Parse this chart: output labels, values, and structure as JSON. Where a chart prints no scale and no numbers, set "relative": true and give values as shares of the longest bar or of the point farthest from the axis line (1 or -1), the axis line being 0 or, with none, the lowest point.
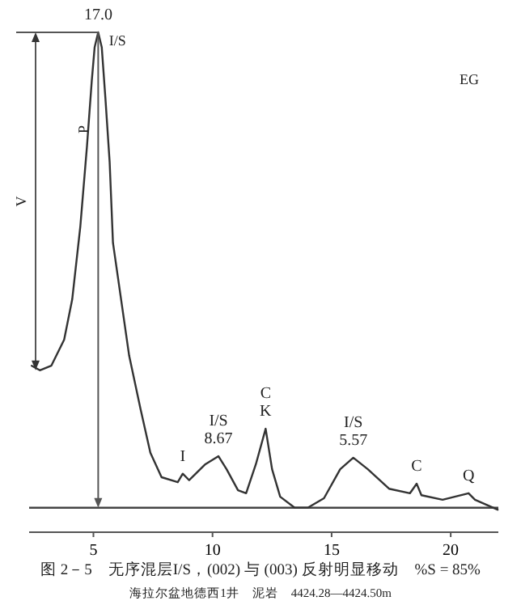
{
  "chart_data": {
    "type": "line",
    "relative": true,
    "title": "图 2－5　无序混层I/S，(002) 与 (003) 反射明显移动　%S = 85%",
    "subtitle": "海拉尔盆地德西1井　泥岩　4424.28—4424.50m",
    "x": [
      2.41,
      2.75,
      3.23,
      3.77,
      4.11,
      4.45,
      4.73,
      4.93,
      5.05,
      5.2,
      5.35,
      5.5,
      5.68,
      5.82,
      6.5,
      6.98,
      7.39,
      7.86,
      8.54,
      8.75,
      9.02,
      9.7,
      10.25,
      10.59,
      11.07,
      11.41,
      11.82,
      12.23,
      12.5,
      12.84,
      13.45,
      14.0,
      14.68,
      15.36,
      15.91,
      16.52,
      17.41,
      18.29,
      18.57,
      18.77,
      19.66,
      20.75,
      21.02,
      21.97
    ],
    "series": [
      {
        "color": "#333333",
        "values": [
          0.333,
          0.324,
          0.333,
          0.385,
          0.466,
          0.612,
          0.773,
          0.903,
          0.97,
          1.0,
          0.97,
          0.87,
          0.741,
          0.579,
          0.353,
          0.246,
          0.159,
          0.11,
          0.1,
          0.117,
          0.104,
          0.136,
          0.152,
          0.126,
          0.084,
          0.078,
          0.136,
          0.207,
          0.126,
          0.071,
          0.049,
          0.049,
          0.068,
          0.126,
          0.149,
          0.126,
          0.087,
          0.078,
          0.097,
          0.074,
          0.065,
          0.078,
          0.065,
          0.045
        ]
      }
    ],
    "xlim": [
      2.3,
      22
    ],
    "xticks": [
      5,
      10,
      15,
      20
    ],
    "grid": false,
    "marker": "none",
    "line_style": "solid",
    "ref_lines": [
      {
        "axis": "y",
        "value": 0.049,
        "color": "#444444"
      },
      {
        "axis": "x",
        "value": 5.2,
        "label": "P",
        "color": "#555555"
      }
    ],
    "annotations": [
      {
        "text": "17.0",
        "x": 5.2,
        "y": 1.0
      },
      {
        "text": "I",
        "x": 8.75,
        "y": 0.117
      },
      {
        "text": "I/S\n8.67",
        "x": 10.25,
        "y": 0.152
      },
      {
        "text": "C\nK",
        "x": 12.23,
        "y": 0.207
      },
      {
        "text": "I/S\n5.57",
        "x": 15.91,
        "y": 0.149
      },
      {
        "text": "C",
        "x": 18.57,
        "y": 0.097
      },
      {
        "text": "Q",
        "x": 20.75,
        "y": 0.078
      },
      "V",
      "I/S",
      "EG"
    ]
  }
}
